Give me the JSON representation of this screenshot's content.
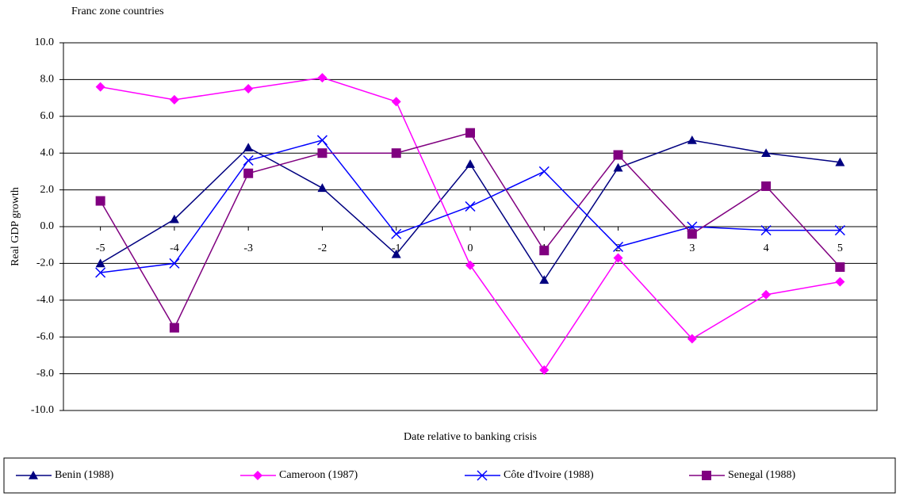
{
  "chart_data": {
    "type": "line",
    "title": "Franc zone countries",
    "xlabel": "Date relative to banking crisis",
    "ylabel": "Real GDP growth",
    "x": [
      -5,
      -4,
      -3,
      -2,
      -1,
      0,
      1,
      2,
      3,
      4,
      5
    ],
    "xlim": [
      -5.5,
      5.5
    ],
    "xticks": [
      -5,
      -4,
      -3,
      -2,
      -1,
      0,
      1,
      2,
      3,
      4,
      5
    ],
    "ylim": [
      -10,
      10
    ],
    "yticks": [
      {
        "value": -10,
        "label": "-10.0"
      },
      {
        "value": -8,
        "label": "-8.0"
      },
      {
        "value": -6,
        "label": "-6.0"
      },
      {
        "value": -4,
        "label": "-4.0"
      },
      {
        "value": -2,
        "label": "-2.0"
      },
      {
        "value": 0,
        "label": "0.0"
      },
      {
        "value": 2,
        "label": "2.0"
      },
      {
        "value": 4,
        "label": "4.0"
      },
      {
        "value": 6,
        "label": "6.0"
      },
      {
        "value": 8,
        "label": "8.0"
      },
      {
        "value": 10,
        "label": "10.0"
      }
    ],
    "grid": true,
    "legend": "bottom",
    "series": [
      {
        "name": "Benin (1988)",
        "color": "#000080",
        "marker": "triangle",
        "values": [
          -2.0,
          0.4,
          4.3,
          2.1,
          -1.5,
          3.4,
          -2.9,
          3.2,
          4.7,
          4.0,
          3.5
        ]
      },
      {
        "name": "Cameroon (1987)",
        "color": "#ff00ff",
        "marker": "diamond",
        "values": [
          7.6,
          6.9,
          7.5,
          8.1,
          6.8,
          -2.1,
          -7.8,
          -1.7,
          -6.1,
          -3.7,
          -3.0
        ]
      },
      {
        "name": "Côte d'Ivoire (1988)",
        "color": "#0000ff",
        "marker": "cross",
        "values": [
          -2.5,
          -2.0,
          3.6,
          4.7,
          -0.4,
          1.1,
          3.0,
          -1.1,
          0.0,
          -0.2,
          -0.2
        ]
      },
      {
        "name": "Senegal (1988)",
        "color": "#800080",
        "marker": "square",
        "values": [
          1.4,
          -5.5,
          2.9,
          4.0,
          4.0,
          5.1,
          -1.3,
          3.9,
          -0.4,
          2.2,
          -2.2
        ]
      }
    ]
  }
}
